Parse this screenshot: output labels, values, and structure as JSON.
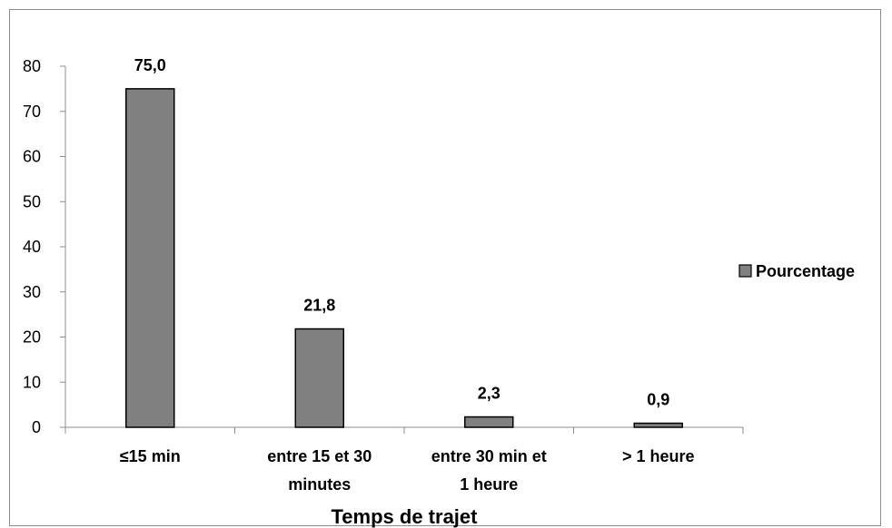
{
  "chart_data": {
    "type": "bar",
    "categories": [
      "≤15 min",
      "entre 15 et 30 minutes",
      "entre 30 min et 1 heure",
      "> 1 heure"
    ],
    "category_lines": [
      [
        "≤15 min"
      ],
      [
        "entre 15 et 30",
        "minutes"
      ],
      [
        "entre 30 min et",
        "1 heure"
      ],
      [
        "> 1 heure"
      ]
    ],
    "series": [
      {
        "name": "Pourcentage",
        "values": [
          75.0,
          21.8,
          2.3,
          0.9
        ],
        "labels": [
          "75,0",
          "21,8",
          "2,3",
          "0,9"
        ]
      }
    ],
    "xlabel": "Temps de trajet",
    "ylabel": "",
    "ylim": [
      0,
      80
    ],
    "yticks": [
      0,
      10,
      20,
      30,
      40,
      50,
      60,
      70,
      80
    ],
    "grid": false,
    "legend_position": "right",
    "bar_color": "#808080",
    "bar_stroke": "#000000"
  }
}
